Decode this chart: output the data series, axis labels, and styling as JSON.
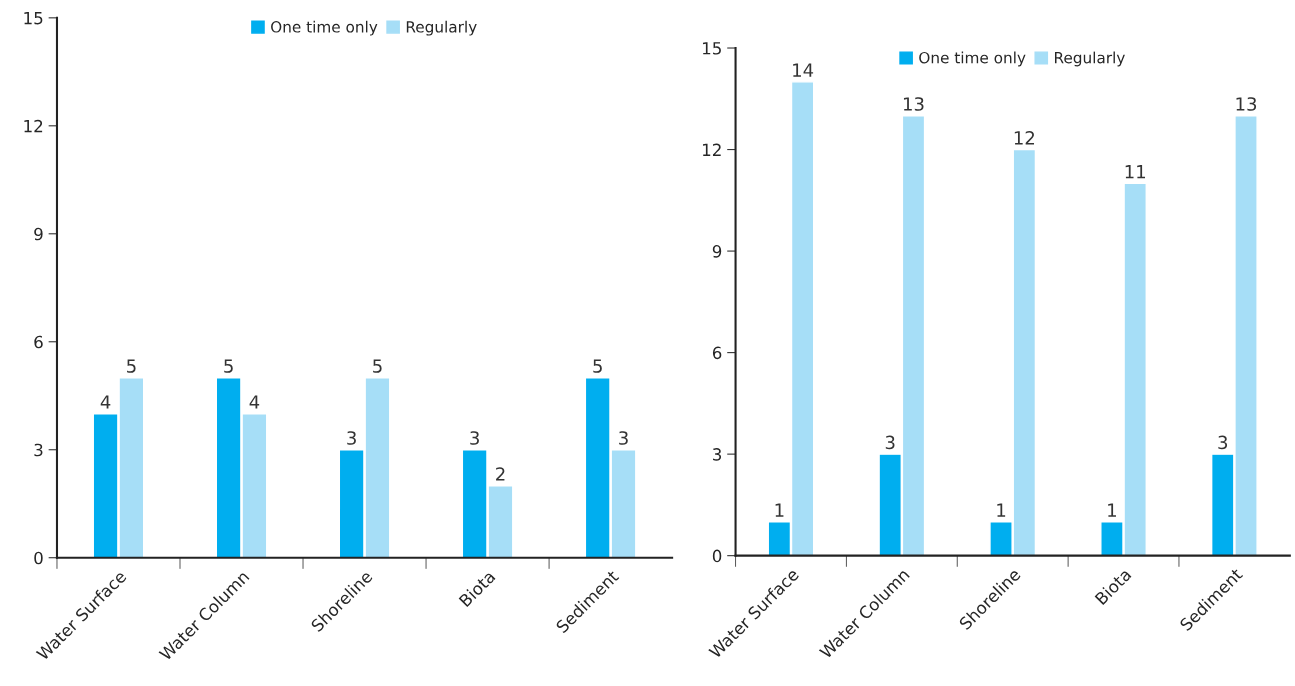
{
  "chart_data": [
    {
      "type": "bar",
      "categories": [
        "Water Surface",
        "Water Column",
        "Shoreline",
        "Biota",
        "Sediment"
      ],
      "series": [
        {
          "name": "One time only",
          "color": "#00aeef",
          "values": [
            4,
            5,
            3,
            3,
            5
          ]
        },
        {
          "name": "Regularly",
          "color": "#a6def7",
          "values": [
            5,
            4,
            5,
            2,
            3
          ]
        }
      ],
      "ylim": [
        0,
        15
      ],
      "yticks": [
        0,
        3,
        6,
        9,
        12,
        15
      ],
      "data_labels": true,
      "legend": "top",
      "grid": false
    },
    {
      "type": "bar",
      "categories": [
        "Water Surface",
        "Water Column",
        "Shoreline",
        "Biota",
        "Sediment"
      ],
      "series": [
        {
          "name": "One time only",
          "color": "#00aeef",
          "values": [
            1,
            3,
            1,
            1,
            3
          ]
        },
        {
          "name": "Regularly",
          "color": "#a6def7",
          "values": [
            14,
            13,
            12,
            11,
            13
          ]
        }
      ],
      "ylim": [
        0,
        15
      ],
      "yticks": [
        0,
        3,
        6,
        9,
        12,
        15
      ],
      "data_labels": true,
      "legend": "top",
      "grid": false
    }
  ]
}
